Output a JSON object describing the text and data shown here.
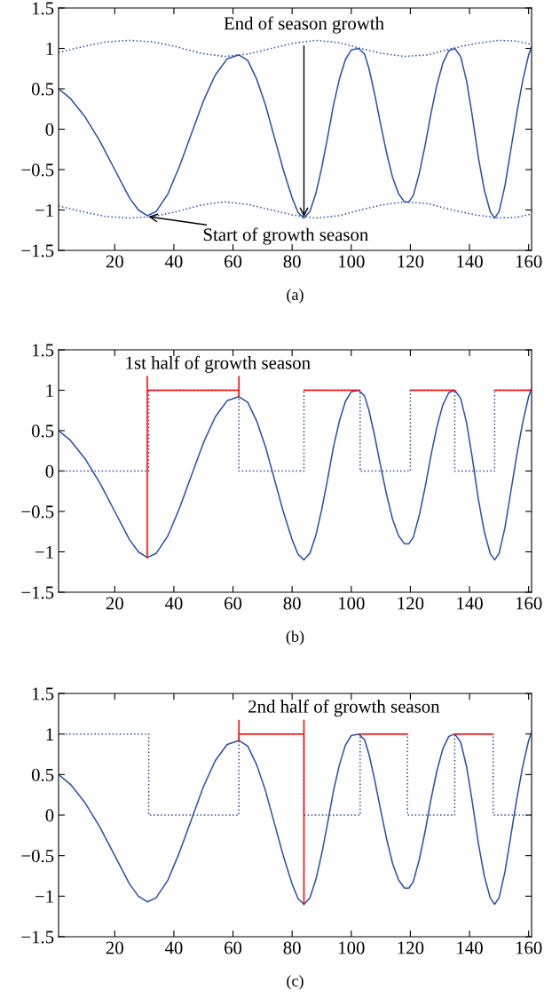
{
  "chart_data": [
    {
      "type": "line",
      "xlabel": "(a)",
      "xlim": [
        1,
        161
      ],
      "ylim": [
        -1.5,
        1.5
      ],
      "xticks": [
        20,
        40,
        60,
        80,
        100,
        120,
        140,
        160
      ],
      "yticks": [
        {
          "value": -1.5,
          "label": "−1.5"
        },
        {
          "value": -1,
          "label": "−1"
        },
        {
          "value": -0.5,
          "label": "−0.5"
        },
        0,
        0.5,
        1,
        1.5
      ],
      "grid": false,
      "series": [
        {
          "color": "#2b4fa8",
          "line_style": "solid",
          "x": [
            1,
            5,
            10,
            15,
            20,
            25,
            28,
            31,
            34,
            38,
            42,
            46,
            50,
            54,
            58,
            62,
            65,
            68,
            71,
            74,
            77,
            80,
            82,
            84,
            86,
            88,
            90,
            92,
            94,
            96,
            98,
            100,
            102.5,
            104.5,
            106,
            108,
            110,
            112,
            114,
            116,
            118,
            119.5,
            121,
            123,
            125,
            127,
            129,
            131,
            133,
            135,
            137,
            139,
            141,
            143,
            145,
            147,
            148.5,
            150,
            152,
            154,
            156,
            158,
            160,
            161
          ],
          "values": [
            0.5,
            0.38,
            0.15,
            -0.15,
            -0.5,
            -0.85,
            -1.0,
            -1.07,
            -1.02,
            -0.8,
            -0.45,
            -0.05,
            0.35,
            0.67,
            0.87,
            0.92,
            0.85,
            0.62,
            0.3,
            -0.1,
            -0.5,
            -0.85,
            -1.03,
            -1.1,
            -1.02,
            -0.8,
            -0.48,
            -0.1,
            0.3,
            0.62,
            0.86,
            0.98,
            1.0,
            0.93,
            0.75,
            0.42,
            0.05,
            -0.3,
            -0.6,
            -0.8,
            -0.9,
            -0.9,
            -0.82,
            -0.55,
            -0.2,
            0.2,
            0.55,
            0.82,
            0.97,
            1.0,
            0.9,
            0.6,
            0.15,
            -0.35,
            -0.75,
            -1.02,
            -1.1,
            -1.02,
            -0.7,
            -0.25,
            0.2,
            0.6,
            0.92,
            1.02
          ]
        },
        {
          "color": "#2b4fa8",
          "line_style": "dotted",
          "x": [
            1,
            9,
            17,
            25,
            33,
            41,
            49,
            57,
            65,
            73,
            80,
            88,
            96,
            103,
            110,
            118,
            126,
            134,
            142,
            150,
            156,
            161
          ],
          "values": [
            0.95,
            1.02,
            1.08,
            1.1,
            1.08,
            1.02,
            0.94,
            0.9,
            0.93,
            1.0,
            1.06,
            1.1,
            1.07,
            1.0,
            0.94,
            0.9,
            0.92,
            1.0,
            1.06,
            1.1,
            1.09,
            1.05
          ]
        },
        {
          "color": "#2b4fa8",
          "line_style": "dotted",
          "x": [
            1,
            9,
            17,
            25,
            33,
            41,
            49,
            57,
            65,
            73,
            80,
            88,
            96,
            103,
            110,
            118,
            126,
            134,
            142,
            150,
            156,
            161
          ],
          "values": [
            -0.95,
            -1.02,
            -1.08,
            -1.1,
            -1.08,
            -1.02,
            -0.94,
            -0.9,
            -0.93,
            -1.0,
            -1.06,
            -1.1,
            -1.07,
            -1.0,
            -0.94,
            -0.9,
            -0.92,
            -1.0,
            -1.06,
            -1.1,
            -1.09,
            -1.05
          ]
        }
      ],
      "annotations": [
        {
          "text": "End of season growth",
          "x": 84,
          "y": -1.1
        },
        {
          "text": "Start of growth season",
          "x": 31,
          "y": -1.08
        }
      ]
    },
    {
      "type": "line",
      "xlabel": "(b)",
      "xlim": [
        1,
        161
      ],
      "ylim": [
        -1.5,
        1.5
      ],
      "xticks": [
        20,
        40,
        60,
        80,
        100,
        120,
        140,
        160
      ],
      "yticks": [
        {
          "value": -1.5,
          "label": "−1.5"
        },
        {
          "value": -1,
          "label": "−1"
        },
        {
          "value": -0.5,
          "label": "−0.5"
        },
        0,
        0.5,
        1,
        1.5
      ],
      "grid": false,
      "series": [
        {
          "color": "#2b4fa8",
          "line_style": "solid",
          "x": [
            1,
            5,
            10,
            15,
            20,
            25,
            28,
            31,
            34,
            38,
            42,
            46,
            50,
            54,
            58,
            62,
            65,
            68,
            71,
            74,
            77,
            80,
            82,
            84,
            86,
            88,
            90,
            92,
            94,
            96,
            98,
            100,
            102.5,
            104.5,
            106,
            108,
            110,
            112,
            114,
            116,
            118,
            119.5,
            121,
            123,
            125,
            127,
            129,
            131,
            133,
            135,
            137,
            139,
            141,
            143,
            145,
            147,
            148.5,
            150,
            152,
            154,
            156,
            158,
            160,
            161
          ],
          "values": [
            0.5,
            0.38,
            0.15,
            -0.15,
            -0.5,
            -0.85,
            -1.0,
            -1.07,
            -1.02,
            -0.8,
            -0.45,
            -0.05,
            0.35,
            0.67,
            0.87,
            0.92,
            0.85,
            0.62,
            0.3,
            -0.1,
            -0.5,
            -0.85,
            -1.03,
            -1.1,
            -1.02,
            -0.8,
            -0.48,
            -0.1,
            0.3,
            0.62,
            0.86,
            0.98,
            1.0,
            0.93,
            0.75,
            0.42,
            0.05,
            -0.3,
            -0.6,
            -0.8,
            -0.9,
            -0.9,
            -0.82,
            -0.55,
            -0.2,
            0.2,
            0.55,
            0.82,
            0.97,
            1.0,
            0.9,
            0.6,
            0.15,
            -0.35,
            -0.75,
            -1.02,
            -1.1,
            -1.02,
            -0.7,
            -0.25,
            0.2,
            0.6,
            0.92,
            1.02
          ]
        },
        {
          "type": "step",
          "color": "#2b4fa8",
          "line_style": "dotted",
          "x": [
            1,
            31.5,
            62,
            84,
            103,
            120,
            135,
            148.5,
            161
          ],
          "values": [
            0,
            1,
            0,
            1,
            0,
            1,
            0,
            1,
            1
          ]
        },
        {
          "color": "#ff0000",
          "line_style": "solid",
          "x": [
            31,
            31,
            31,
            62,
            62,
            62,
            70,
            84,
            102.5,
            110,
            120,
            135,
            140,
            148.5,
            161
          ],
          "values": [
            -1.07,
            1.17,
            1,
            1,
            1.17,
            0.92,
            null,
            1,
            1,
            null,
            1,
            1,
            null,
            1,
            1
          ]
        }
      ],
      "annotations": [
        "1st half of growth season"
      ]
    },
    {
      "type": "line",
      "xlabel": "(c)",
      "xlim": [
        1,
        161
      ],
      "ylim": [
        -1.5,
        1.5
      ],
      "xticks": [
        20,
        40,
        60,
        80,
        100,
        120,
        140,
        160
      ],
      "yticks": [
        {
          "value": -1.5,
          "label": "−1.5"
        },
        {
          "value": -1,
          "label": "−1"
        },
        {
          "value": -0.5,
          "label": "−0.5"
        },
        0,
        0.5,
        1,
        1.5
      ],
      "grid": false,
      "series": [
        {
          "color": "#2b4fa8",
          "line_style": "solid",
          "x": [
            1,
            5,
            10,
            15,
            20,
            25,
            28,
            31,
            34,
            38,
            42,
            46,
            50,
            54,
            58,
            62,
            65,
            68,
            71,
            74,
            77,
            80,
            82,
            84,
            86,
            88,
            90,
            92,
            94,
            96,
            98,
            100,
            102.5,
            104.5,
            106,
            108,
            110,
            112,
            114,
            116,
            118,
            119.5,
            121,
            123,
            125,
            127,
            129,
            131,
            133,
            135,
            137,
            139,
            141,
            143,
            145,
            147,
            148.5,
            150,
            152,
            154,
            156,
            158,
            160,
            161
          ],
          "values": [
            0.5,
            0.38,
            0.15,
            -0.15,
            -0.5,
            -0.85,
            -1.0,
            -1.07,
            -1.02,
            -0.8,
            -0.45,
            -0.05,
            0.35,
            0.67,
            0.87,
            0.92,
            0.85,
            0.62,
            0.3,
            -0.1,
            -0.5,
            -0.85,
            -1.03,
            -1.1,
            -1.02,
            -0.8,
            -0.48,
            -0.1,
            0.3,
            0.62,
            0.86,
            0.98,
            1.0,
            0.93,
            0.75,
            0.42,
            0.05,
            -0.3,
            -0.6,
            -0.8,
            -0.9,
            -0.9,
            -0.82,
            -0.55,
            -0.2,
            0.2,
            0.55,
            0.82,
            0.97,
            1.0,
            0.9,
            0.6,
            0.15,
            -0.35,
            -0.75,
            -1.02,
            -1.1,
            -1.02,
            -0.7,
            -0.25,
            0.2,
            0.6,
            0.92,
            1.02
          ]
        },
        {
          "type": "step",
          "color": "#2b4fa8",
          "line_style": "dotted",
          "x": [
            1,
            31.5,
            62,
            84,
            103,
            119,
            135,
            148,
            161
          ],
          "values": [
            1,
            0,
            1,
            0,
            1,
            0,
            1,
            0,
            0
          ]
        },
        {
          "color": "#ff0000",
          "line_style": "solid",
          "x": [
            62,
            62,
            62,
            84,
            84,
            84,
            90,
            103,
            119,
            125,
            135,
            148
          ],
          "values": [
            0.92,
            1.17,
            1,
            1,
            1.17,
            -1.1,
            null,
            1,
            1,
            null,
            1,
            1
          ]
        }
      ],
      "annotations": [
        "2nd half of growth season"
      ]
    }
  ]
}
